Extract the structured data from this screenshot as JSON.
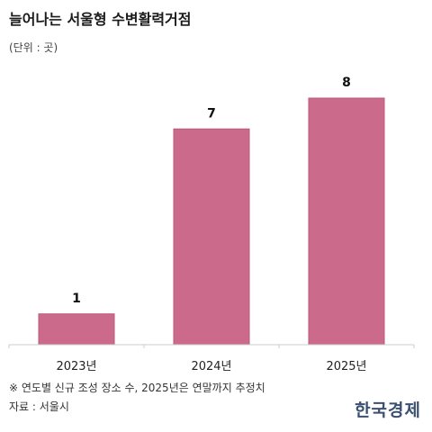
{
  "title": "늘어나는 서울형 수변활력거점",
  "unit_label": "(단위 : 곳)",
  "footnote": "※ 연도별 신규 조성 장소 수, 2025년은 연말까지 추정치",
  "source": "자료 : 서울시",
  "logo": "한국경제",
  "colors": {
    "bar": "#cc6a8c",
    "bar_stroke": "#b85a7c",
    "axis": "#cccccc",
    "text": "#222222"
  },
  "chart_data": {
    "type": "bar",
    "title": "늘어나는 서울형 수변활력거점",
    "xlabel": "",
    "ylabel": "",
    "categories": [
      "2023년",
      "2024년",
      "2025년"
    ],
    "values": [
      1,
      7,
      8
    ],
    "ylim": [
      0,
      8
    ],
    "data_labels": [
      "1",
      "7",
      "8"
    ],
    "grid": false,
    "legend": "none"
  }
}
